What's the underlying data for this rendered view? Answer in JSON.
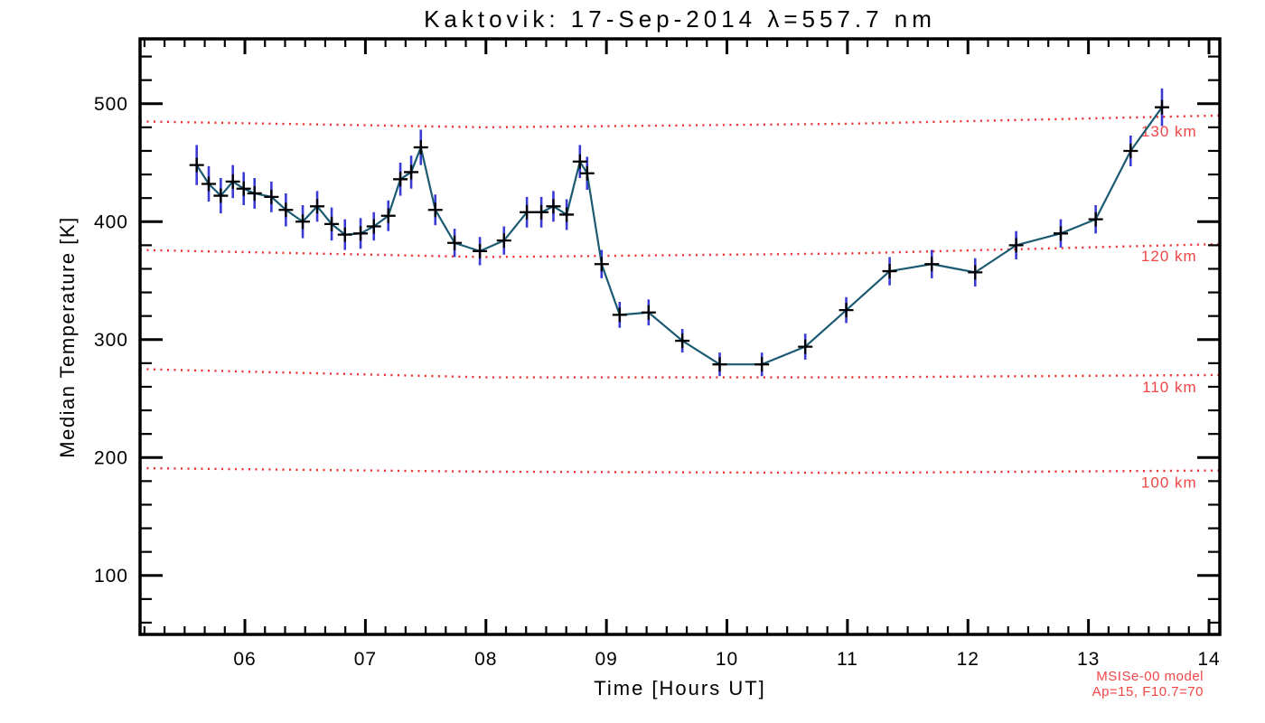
{
  "station": "Kaktovik",
  "date": "17-Sep-2014",
  "wavelength_nm": "557.7",
  "chart_data": {
    "type": "line",
    "title": "Kaktovik: 17-Sep-2014 λ=557.7 nm",
    "xlabel": "Time [Hours UT]",
    "ylabel": "Median Temperature [K]",
    "xlim": [
      5.13,
      14.09
    ],
    "ylim": [
      50,
      555
    ],
    "x_ticks": [
      6,
      7,
      8,
      9,
      10,
      11,
      12,
      13,
      14
    ],
    "x_tick_labels": [
      "06",
      "07",
      "08",
      "09",
      "10",
      "11",
      "12",
      "13",
      "14"
    ],
    "x_minor_per_hour": 6,
    "y_ticks": [
      100,
      200,
      300,
      400,
      500
    ],
    "y_tick_labels": [
      "100",
      "200",
      "300",
      "400",
      "500"
    ],
    "y_minor_step": 20,
    "grid": false,
    "legend": "none",
    "frame_color": "#000000",
    "background_color": "#ffffff",
    "series": [
      {
        "name": "median-temperature",
        "line_color": "#1b5a72",
        "marker": "plus",
        "marker_color": "#000000",
        "errorbar_color": "#3a3ad4",
        "x": [
          5.6,
          5.7,
          5.8,
          5.9,
          5.99,
          6.08,
          6.22,
          6.34,
          6.48,
          6.6,
          6.72,
          6.83,
          6.96,
          7.07,
          7.19,
          7.29,
          7.38,
          7.46,
          7.58,
          7.74,
          7.95,
          8.15,
          8.34,
          8.46,
          8.56,
          8.67,
          8.78,
          8.84,
          8.96,
          9.11,
          9.35,
          9.63,
          9.94,
          10.29,
          10.65,
          10.99,
          11.35,
          11.7,
          12.06,
          12.4,
          12.77,
          13.06,
          13.35,
          13.61
        ],
        "y": [
          448,
          432,
          422,
          434,
          428,
          424,
          421,
          410,
          400,
          413,
          398,
          389,
          390,
          396,
          405,
          436,
          442,
          463,
          410,
          382,
          375,
          384,
          408,
          408,
          413,
          406,
          451,
          441,
          364,
          321,
          323,
          299,
          279,
          279,
          294,
          325,
          358,
          364,
          357,
          380,
          390,
          402,
          460,
          497
        ],
        "yerr": [
          17,
          15,
          15,
          14,
          14,
          13,
          13,
          14,
          14,
          13,
          14,
          13,
          13,
          12,
          13,
          14,
          14,
          15,
          13,
          12,
          12,
          12,
          13,
          13,
          13,
          13,
          14,
          14,
          12,
          11,
          11,
          10,
          10,
          10,
          11,
          11,
          12,
          12,
          12,
          12,
          12,
          12,
          13,
          16
        ]
      }
    ],
    "model_lines": [
      {
        "label": "130 km",
        "color": "#f02e2e",
        "label_color": "#f04545",
        "x": [
          5.13,
          8.0,
          11.0,
          14.09
        ],
        "y": [
          485,
          480,
          483,
          490
        ],
        "label_x": 13.9,
        "label_y": 477
      },
      {
        "label": "120 km",
        "color": "#f02e2e",
        "label_color": "#f04545",
        "x": [
          5.13,
          8.0,
          11.0,
          14.09
        ],
        "y": [
          376,
          370,
          373,
          381
        ],
        "label_x": 13.9,
        "label_y": 371
      },
      {
        "label": "110 km",
        "color": "#f02e2e",
        "label_color": "#f04545",
        "x": [
          5.13,
          8.0,
          11.0,
          14.09
        ],
        "y": [
          275,
          268,
          268,
          270
        ],
        "label_x": 13.9,
        "label_y": 260
      },
      {
        "label": "100 km",
        "color": "#f02e2e",
        "label_color": "#f04545",
        "x": [
          5.13,
          8.0,
          11.0,
          14.09
        ],
        "y": [
          191,
          188,
          187,
          189
        ],
        "label_x": 13.9,
        "label_y": 179
      }
    ],
    "annotations": {
      "model_name": "MSISe-00 model",
      "model_params": "Ap=15, F10.7=70",
      "color": "#f04545"
    }
  }
}
